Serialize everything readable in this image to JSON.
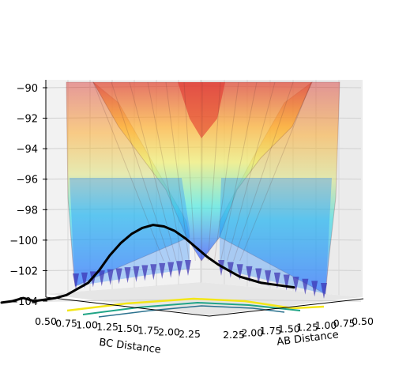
{
  "chart_data": {
    "type": "surface",
    "xlabel": "AB Distance",
    "ylabel": "BC Distance",
    "zlabel": "",
    "ab_ticks": [
      "0.50",
      "0.75",
      "1.00",
      "1.25",
      "1.50",
      "1.75",
      "2.00",
      "2.25"
    ],
    "bc_ticks": [
      "0.50",
      "0.75",
      "1.00",
      "1.25",
      "1.50",
      "1.75",
      "2.00",
      "2.25"
    ],
    "z_ticks": [
      "−90",
      "−92",
      "−94",
      "−96",
      "−98",
      "−100",
      "−102",
      "−104"
    ],
    "z_values": [
      -90,
      -92,
      -94,
      -96,
      -98,
      -100,
      -102,
      -104
    ],
    "ab_range": [
      0.5,
      2.4
    ],
    "bc_range": [
      0.5,
      2.4
    ],
    "z_range": [
      -104,
      -90
    ],
    "colormap": "jet",
    "colormap_colors": [
      "#00007f",
      "#0000ff",
      "#007fff",
      "#00ffff",
      "#7fff7f",
      "#ffff00",
      "#ff7f00",
      "#ff0000",
      "#7f0000"
    ],
    "trajectory_color": "#000000",
    "trajectory": {
      "ab": [
        2.4,
        2.3,
        2.2,
        2.1,
        2.0,
        1.9,
        1.8,
        1.7,
        1.6,
        1.5,
        1.4,
        1.3,
        1.2,
        1.1,
        1.0,
        0.95,
        0.9,
        0.85,
        0.8,
        0.76,
        0.75,
        0.74,
        0.75,
        0.76,
        0.75,
        0.74,
        0.75,
        0.76
      ],
      "bc": [
        0.74,
        0.75,
        0.76,
        0.75,
        0.74,
        0.75,
        0.76,
        0.75,
        0.76,
        0.8,
        0.85,
        0.9,
        0.95,
        1.0,
        1.1,
        1.2,
        1.3,
        1.4,
        1.5,
        1.6,
        1.7,
        1.8,
        1.9,
        2.0,
        2.1,
        2.2,
        2.3,
        2.4
      ],
      "energy": [
        -104.1,
        -104.0,
        -103.8,
        -104.0,
        -103.9,
        -103.8,
        -103.6,
        -103.2,
        -102.8,
        -102.0,
        -101.0,
        -100.2,
        -99.6,
        -99.2,
        -99.0,
        -99.1,
        -99.4,
        -99.9,
        -100.5,
        -101.1,
        -101.6,
        -102.0,
        -102.4,
        -102.6,
        -102.8,
        -102.9,
        -103.0,
        -103.1
      ]
    }
  }
}
